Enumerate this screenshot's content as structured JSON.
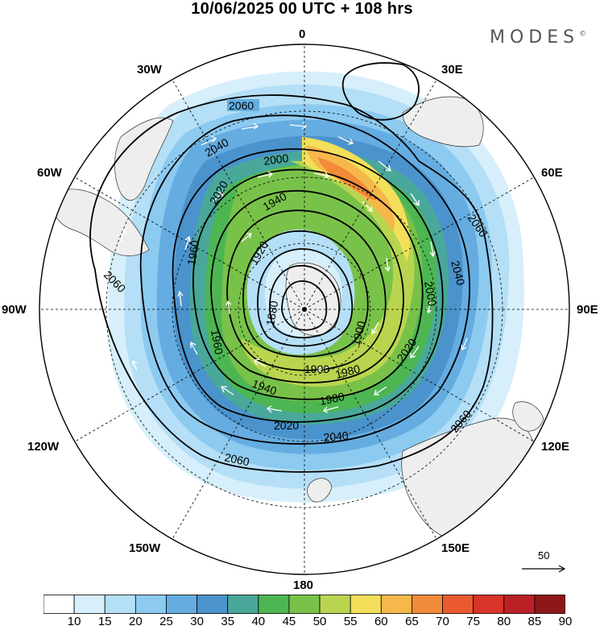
{
  "title": "10/06/2025  00 UTC  + 108 hrs",
  "brand": "MODES",
  "brand_mark": "©",
  "longitude_labels": {
    "n0": "0",
    "n30e": "30E",
    "n60e": "60E",
    "n90e": "90E",
    "n120e": "120E",
    "n150e": "150E",
    "n180": "180",
    "n150w": "150W",
    "n120w": "120W",
    "n90w": "90W",
    "n60w": "60W",
    "n30w": "30W"
  },
  "vector_legend": {
    "value": "50"
  },
  "contour_labels": [
    "2060",
    "2040",
    "2000",
    "2020",
    "1940",
    "1920",
    "1880",
    "1960",
    "1980",
    "1900",
    "2060",
    "2040",
    "2000",
    "2020",
    "2060",
    "2060",
    "1960",
    "1940",
    "1900",
    "1980",
    "2020",
    "2040",
    "2060"
  ],
  "colorbar": {
    "labels": [
      "10",
      "15",
      "20",
      "25",
      "30",
      "35",
      "40",
      "45",
      "50",
      "55",
      "60",
      "65",
      "70",
      "75",
      "80",
      "85",
      "90"
    ],
    "colors": [
      "#ffffff",
      "#d6effb",
      "#b4dff6",
      "#8ccaf0",
      "#65ade1",
      "#4b93cc",
      "#49a89a",
      "#4db653",
      "#79c24a",
      "#b9d54f",
      "#f3df5a",
      "#f6b74b",
      "#f18a39",
      "#ea5a2f",
      "#d8342a",
      "#bb2026",
      "#8e1717"
    ]
  },
  "colors": {
    "ocean": "#ffffff",
    "land": "#eeeeee",
    "contour": "#000000",
    "grid": "#000000",
    "vector": "#ffffff"
  }
}
